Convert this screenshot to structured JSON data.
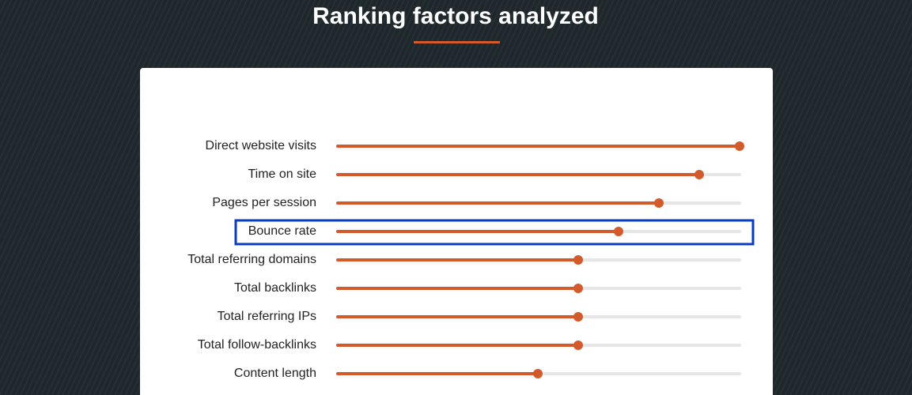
{
  "chart_data": {
    "type": "bar",
    "title": "Ranking factors analyzed",
    "categories": [
      "Direct website visits",
      "Time on site",
      "Pages per session",
      "Bounce rate",
      "Total referring domains",
      "Total backlinks",
      "Total referring IPs",
      "Total follow-backlinks",
      "Content length"
    ],
    "values": [
      100,
      90,
      80,
      70,
      60,
      60,
      60,
      60,
      50
    ],
    "xlim": [
      0,
      100
    ],
    "color": "#d35a2a",
    "track_color": "#e6e6e6",
    "highlight_index": 3,
    "highlight_color": "#0a3bbf"
  }
}
